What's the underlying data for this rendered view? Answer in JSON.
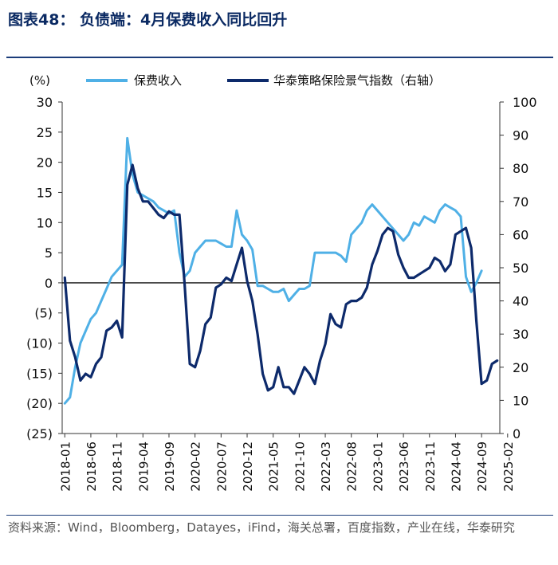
{
  "title": "图表48： 负债端：4月保费收入同比回升",
  "source": "资料来源：Wind，Bloomberg，Datayes，iFind，海关总署，百度指数，产业在线，华泰研究",
  "colors": {
    "premium": "#4fb0e6",
    "index": "#0d2a6b",
    "title": "#0b2a63"
  },
  "chart_data": {
    "type": "line",
    "title": "负债端：4月保费收入同比回升",
    "y_unit_label": "(%)",
    "ylim": [
      -25,
      30
    ],
    "y2lim": [
      0,
      100
    ],
    "y_ticks": [
      "30",
      "25",
      "20",
      "15",
      "10",
      "5",
      "0",
      "(5)",
      "(10)",
      "(15)",
      "(20)",
      "(25)"
    ],
    "y2_ticks": [
      "100",
      "90",
      "80",
      "70",
      "60",
      "50",
      "40",
      "30",
      "20",
      "10",
      "0"
    ],
    "x_tick_labels": [
      "2018-01",
      "2018-06",
      "2018-11",
      "2019-04",
      "2019-09",
      "2020-02",
      "2020-07",
      "2020-12",
      "2021-05",
      "2021-10",
      "2022-03",
      "2022-08",
      "2023-01",
      "2023-06",
      "2023-11",
      "2024-04",
      "2024-09",
      "2025-02"
    ],
    "start_month": "2018-01",
    "series": [
      {
        "name": "保费收入",
        "axis": "left",
        "values": [
          -20,
          -19,
          -14,
          -10,
          -8,
          -6,
          -5,
          -3,
          -1,
          1,
          2,
          3,
          24,
          18,
          15,
          14.5,
          14,
          13.5,
          12.5,
          12,
          11.5,
          12,
          5,
          1,
          2,
          5,
          6,
          7,
          7,
          7,
          6.5,
          6,
          6,
          12,
          8,
          7,
          5.5,
          -0.5,
          -0.5,
          -1,
          -1.5,
          -1.5,
          -1,
          -3,
          -2,
          -1,
          -1,
          -0.5,
          5,
          5,
          5,
          5,
          5,
          4.5,
          3.5,
          8,
          9,
          10,
          12,
          13,
          12,
          11,
          10,
          9,
          8,
          7,
          8,
          10,
          9.5,
          11,
          10.5,
          10,
          12,
          13,
          12.5,
          12,
          11,
          1,
          -1.5,
          0,
          2
        ]
      },
      {
        "name": "华泰策略保险景气指数（右轴）",
        "axis": "right",
        "values": [
          47,
          28,
          23,
          16,
          18,
          17,
          21,
          23,
          31,
          32,
          34,
          29,
          75,
          81,
          74,
          70,
          70,
          68,
          66,
          65,
          67,
          66,
          66,
          45,
          21,
          20,
          25,
          33,
          35,
          44,
          45,
          47,
          46,
          51,
          56,
          46,
          40,
          30,
          18,
          13,
          14,
          20,
          14,
          14,
          12,
          16,
          20,
          18,
          15,
          22,
          27,
          36,
          33,
          32,
          39,
          40,
          40,
          41,
          44,
          51,
          55,
          60,
          62,
          61,
          54,
          50,
          47,
          47,
          48,
          49,
          50,
          53,
          52,
          49,
          51,
          60,
          61,
          62,
          56,
          34,
          15,
          16,
          21,
          22
        ]
      }
    ]
  }
}
